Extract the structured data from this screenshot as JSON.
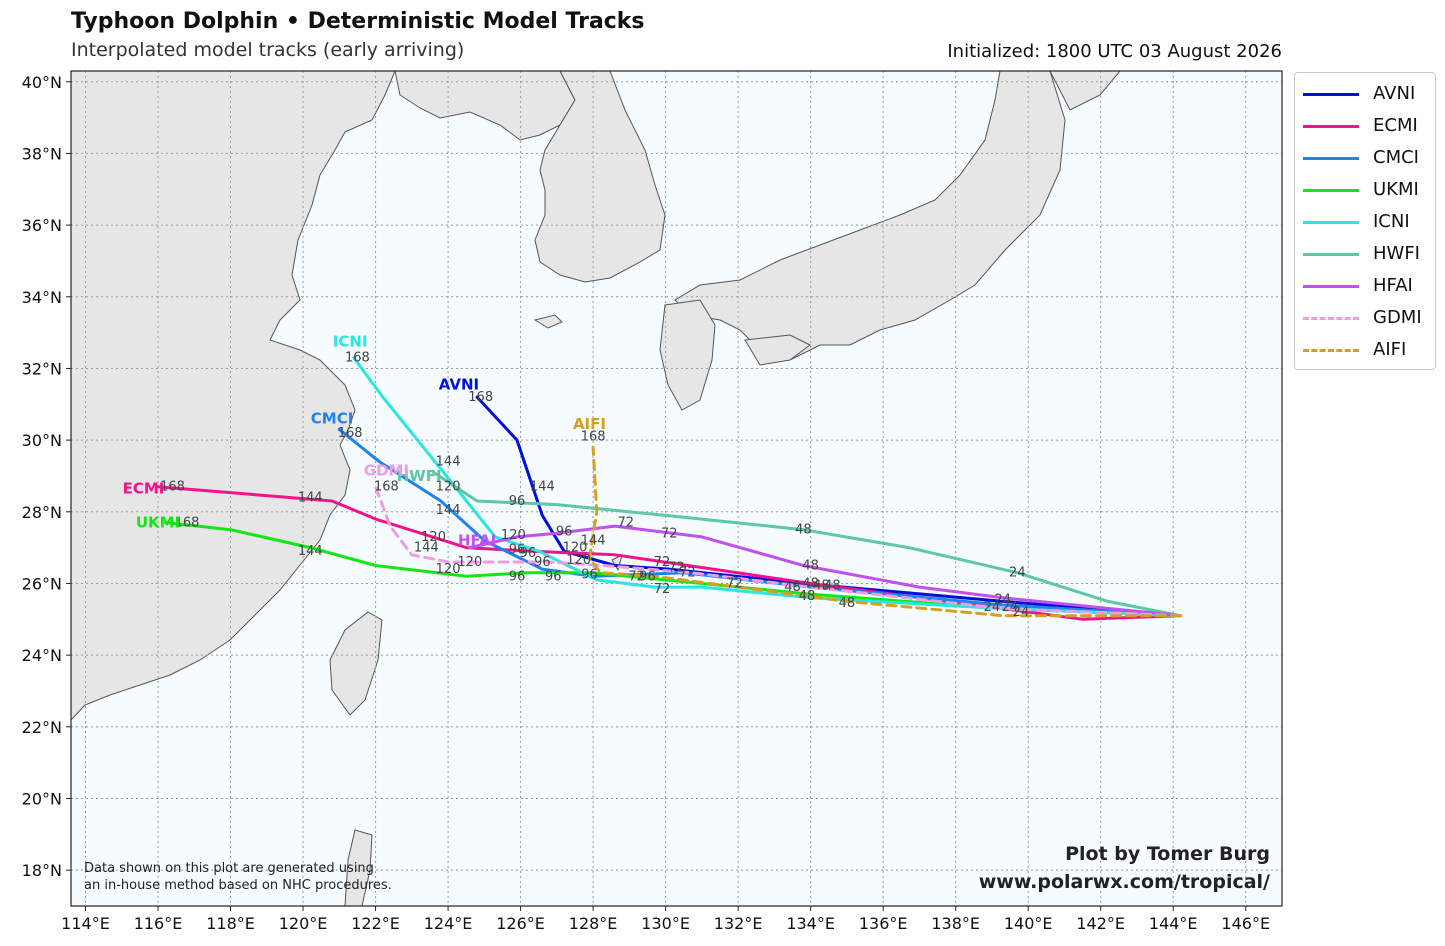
{
  "header": {
    "title": "Typhoon Dolphin • Deterministic Model Tracks",
    "subtitle": "Interpolated model tracks (early arriving)",
    "initialized": "Initialized: 1800 UTC 03 August 2026"
  },
  "axes": {
    "lon_ticks": [
      114,
      116,
      118,
      120,
      122,
      124,
      126,
      128,
      130,
      132,
      134,
      136,
      138,
      140,
      142,
      144,
      146
    ],
    "lat_ticks": [
      18,
      20,
      22,
      24,
      26,
      28,
      30,
      32,
      34,
      36,
      38,
      40
    ],
    "lon_labels": [
      "114°E",
      "116°E",
      "118°E",
      "120°E",
      "122°E",
      "124°E",
      "126°E",
      "128°E",
      "130°E",
      "132°E",
      "134°E",
      "136°E",
      "138°E",
      "140°E",
      "142°E",
      "144°E",
      "146°E"
    ],
    "lat_labels": [
      "18°N",
      "20°N",
      "22°N",
      "24°N",
      "26°N",
      "28°N",
      "30°N",
      "32°N",
      "34°N",
      "36°N",
      "38°N",
      "40°N"
    ],
    "lon_range": [
      113.6,
      147.0
    ],
    "lat_range": [
      17.0,
      40.3
    ]
  },
  "colors": {
    "land": "#e6e6e6",
    "ocean": "#f5fbff",
    "coast": "#555555",
    "grid": "#9a9a9a"
  },
  "chart_data": {
    "type": "map-tracks",
    "forecast_hours_marked": [
      24,
      48,
      72,
      96,
      120,
      144,
      168
    ],
    "series": [
      {
        "name": "AVNI",
        "color": "#0010d9",
        "dashed": false,
        "lon": [
          144.2,
          139.3,
          133.8,
          130.1,
          128.6,
          127.2,
          126.6,
          125.9,
          124.8
        ],
        "lat": [
          25.1,
          25.5,
          26.0,
          26.4,
          26.5,
          26.9,
          27.9,
          30.0,
          31.2
        ]
      },
      {
        "name": "ECMI",
        "color": "#f0148c",
        "dashed": false,
        "lon": [
          144.2,
          141.5,
          139.3,
          134.0,
          131.3,
          128.6,
          126.3,
          124.5,
          122.0,
          120.8,
          116.0
        ],
        "lat": [
          25.1,
          25.0,
          25.3,
          26.0,
          26.4,
          26.8,
          26.9,
          27.0,
          27.8,
          28.3,
          28.7
        ]
      },
      {
        "name": "CMCI",
        "color": "#1e82f0",
        "dashed": false,
        "lon": [
          144.2,
          139.3,
          134.0,
          130.5,
          128.0,
          126.6,
          125.0,
          123.8,
          122.1,
          121.0
        ],
        "lat": [
          25.1,
          25.4,
          25.9,
          26.3,
          26.2,
          26.4,
          27.2,
          28.3,
          29.4,
          30.3
        ]
      },
      {
        "name": "UKMI",
        "color": "#14e614",
        "dashed": false,
        "lon": [
          144.2,
          139.3,
          134.0,
          128.0,
          127.3,
          126.2,
          124.5,
          122.0,
          120.2,
          118.0,
          116.2
        ],
        "lat": [
          25.1,
          25.3,
          25.7,
          26.3,
          26.3,
          26.3,
          26.2,
          26.5,
          27.0,
          27.5,
          27.7
        ]
      },
      {
        "name": "ICNI",
        "color": "#28e6e0",
        "dashed": false,
        "lon": [
          144.2,
          139.3,
          134.0,
          131.0,
          129.7,
          128.1,
          127.3,
          126.5,
          125.3,
          123.8,
          122.2,
          121.4
        ],
        "lat": [
          25.1,
          25.3,
          25.6,
          25.9,
          25.9,
          26.1,
          26.5,
          26.9,
          27.3,
          29.2,
          31.2,
          32.3
        ]
      },
      {
        "name": "HWFI",
        "color": "#5cc8a4",
        "dashed": false,
        "lon": [
          144.2,
          142.2,
          139.7,
          136.7,
          133.8,
          130.0,
          127.0,
          124.8,
          123.6
        ],
        "lat": [
          25.1,
          25.5,
          26.3,
          27.0,
          27.5,
          27.9,
          28.2,
          28.3,
          29.1
        ]
      },
      {
        "name": "HFAI",
        "color": "#c050f0",
        "dashed": false,
        "lon": [
          144.2,
          139.3,
          137.0,
          133.8,
          131.0,
          128.6,
          127.0,
          125.9,
          124.6
        ],
        "lat": [
          25.1,
          25.6,
          25.9,
          26.5,
          27.3,
          27.6,
          27.4,
          27.3,
          27.0
        ]
      },
      {
        "name": "GDMI",
        "color": "#ee9ce6",
        "dashed": true,
        "lon": [
          144.2,
          139.3,
          134.0,
          130.7,
          128.3,
          126.8,
          125.5,
          124.0,
          123.0,
          122.4,
          122.0
        ],
        "lat": [
          25.1,
          25.3,
          25.9,
          26.3,
          26.5,
          26.6,
          26.6,
          26.6,
          26.8,
          27.6,
          28.7
        ]
      },
      {
        "name": "AIFI",
        "color": "#d4a020",
        "dashed": true,
        "lon": [
          144.2,
          139.3,
          135.0,
          132.0,
          129.7,
          128.2,
          127.9,
          128.1,
          128.0
        ],
        "lat": [
          25.1,
          25.1,
          25.5,
          25.9,
          26.2,
          26.3,
          26.7,
          28.0,
          29.8
        ]
      }
    ],
    "track_labels": [
      {
        "name": "AVNI",
        "lon": 124.3,
        "lat": 31.55
      },
      {
        "name": "ECMI",
        "lon": 115.6,
        "lat": 28.65
      },
      {
        "name": "CMCI",
        "lon": 120.8,
        "lat": 30.6
      },
      {
        "name": "UKMI",
        "lon": 116.0,
        "lat": 27.7
      },
      {
        "name": "ICNI",
        "lon": 121.3,
        "lat": 32.75
      },
      {
        "name": "HWFI",
        "lon": 123.2,
        "lat": 29.0
      },
      {
        "name": "HFAI",
        "lon": 124.8,
        "lat": 27.2
      },
      {
        "name": "GDMI",
        "lon": 122.3,
        "lat": 29.15
      },
      {
        "name": "AIFI",
        "lon": 127.9,
        "lat": 30.45
      }
    ],
    "hour_labels": [
      {
        "text": "168",
        "lon": 121.5,
        "lat": 32.3
      },
      {
        "text": "168",
        "lon": 124.9,
        "lat": 31.2
      },
      {
        "text": "168",
        "lon": 128.0,
        "lat": 30.1
      },
      {
        "text": "168",
        "lon": 121.3,
        "lat": 30.2
      },
      {
        "text": "168",
        "lon": 116.4,
        "lat": 28.7
      },
      {
        "text": "168",
        "lon": 116.8,
        "lat": 27.7
      },
      {
        "text": "168",
        "lon": 122.3,
        "lat": 28.7
      },
      {
        "text": "144",
        "lon": 124.0,
        "lat": 29.4
      },
      {
        "text": "144",
        "lon": 120.2,
        "lat": 28.4
      },
      {
        "text": "144",
        "lon": 124.0,
        "lat": 28.05
      },
      {
        "text": "144",
        "lon": 123.4,
        "lat": 27.0
      },
      {
        "text": "144",
        "lon": 120.2,
        "lat": 26.9
      },
      {
        "text": "144",
        "lon": 126.6,
        "lat": 28.7
      },
      {
        "text": "144",
        "lon": 128.0,
        "lat": 27.2
      },
      {
        "text": "120",
        "lon": 124.0,
        "lat": 28.7
      },
      {
        "text": "120",
        "lon": 123.6,
        "lat": 27.3
      },
      {
        "text": "120",
        "lon": 124.0,
        "lat": 26.4
      },
      {
        "text": "120",
        "lon": 124.6,
        "lat": 26.6
      },
      {
        "text": "120",
        "lon": 125.8,
        "lat": 27.35
      },
      {
        "text": "120",
        "lon": 127.5,
        "lat": 27.0
      },
      {
        "text": "120",
        "lon": 127.6,
        "lat": 26.65
      },
      {
        "text": "96",
        "lon": 125.9,
        "lat": 28.3
      },
      {
        "text": "96",
        "lon": 127.2,
        "lat": 27.45
      },
      {
        "text": "96",
        "lon": 125.9,
        "lat": 26.95
      },
      {
        "text": "96",
        "lon": 126.2,
        "lat": 26.85
      },
      {
        "text": "96",
        "lon": 126.6,
        "lat": 26.6
      },
      {
        "text": "96",
        "lon": 125.9,
        "lat": 26.2
      },
      {
        "text": "96",
        "lon": 126.9,
        "lat": 26.2
      },
      {
        "text": "96",
        "lon": 129.5,
        "lat": 26.2
      },
      {
        "text": "96",
        "lon": 127.9,
        "lat": 26.25
      },
      {
        "text": "72",
        "lon": 128.9,
        "lat": 27.7
      },
      {
        "text": "72",
        "lon": 130.1,
        "lat": 27.4
      },
      {
        "text": "72",
        "lon": 129.9,
        "lat": 26.6
      },
      {
        "text": "72",
        "lon": 130.3,
        "lat": 26.45
      },
      {
        "text": "72",
        "lon": 130.6,
        "lat": 26.3
      },
      {
        "text": "72",
        "lon": 129.2,
        "lat": 26.2
      },
      {
        "text": "72",
        "lon": 129.9,
        "lat": 25.85
      },
      {
        "text": "72",
        "lon": 131.9,
        "lat": 26.0
      },
      {
        "text": "48",
        "lon": 133.8,
        "lat": 27.5
      },
      {
        "text": "48",
        "lon": 134.0,
        "lat": 26.5
      },
      {
        "text": "48",
        "lon": 134.0,
        "lat": 26.0
      },
      {
        "text": "48",
        "lon": 133.5,
        "lat": 25.9
      },
      {
        "text": "48",
        "lon": 134.3,
        "lat": 25.95
      },
      {
        "text": "48",
        "lon": 134.6,
        "lat": 25.95
      },
      {
        "text": "48",
        "lon": 133.9,
        "lat": 25.65
      },
      {
        "text": "48",
        "lon": 135.0,
        "lat": 25.45
      },
      {
        "text": "24",
        "lon": 139.7,
        "lat": 26.3
      },
      {
        "text": "24",
        "lon": 139.3,
        "lat": 25.55
      },
      {
        "text": "24",
        "lon": 139.0,
        "lat": 25.35
      },
      {
        "text": "24",
        "lon": 139.5,
        "lat": 25.35
      },
      {
        "text": "24",
        "lon": 139.8,
        "lat": 25.2
      }
    ]
  },
  "legend": {
    "items": [
      {
        "label": "AVNI",
        "color": "#0010d9",
        "dashed": false
      },
      {
        "label": "ECMI",
        "color": "#f0148c",
        "dashed": false
      },
      {
        "label": "CMCI",
        "color": "#1e82f0",
        "dashed": false
      },
      {
        "label": "UKMI",
        "color": "#14e614",
        "dashed": false
      },
      {
        "label": "ICNI",
        "color": "#28e6e0",
        "dashed": false
      },
      {
        "label": "HWFI",
        "color": "#5cc8a4",
        "dashed": false
      },
      {
        "label": "HFAI",
        "color": "#c050f0",
        "dashed": false
      },
      {
        "label": "GDMI",
        "color": "#ee9ce6",
        "dashed": true
      },
      {
        "label": "AIFI",
        "color": "#d4a020",
        "dashed": true
      }
    ]
  },
  "footer": {
    "note_line1": "Data shown on this plot are generated using",
    "note_line2": "an in-house method based on NHC procedures.",
    "credit_line1": "Plot by Tomer Burg",
    "credit_line2": "www.polarwx.com/tropical/"
  }
}
